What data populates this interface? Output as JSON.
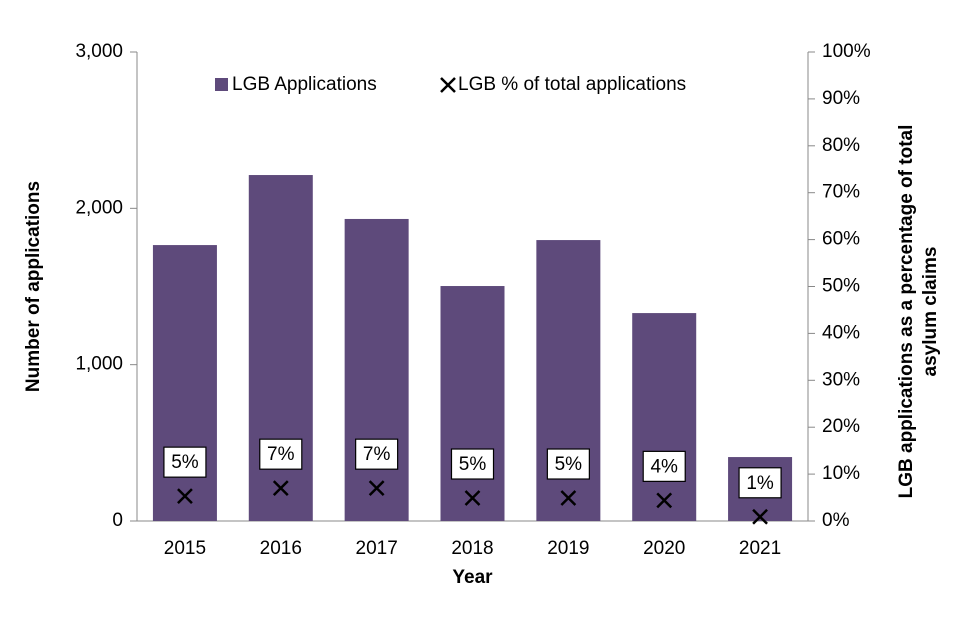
{
  "chart_data": {
    "type": "bar",
    "x_label": "Year",
    "y_label": "Number of applications",
    "y2_label": [
      "LGB applications as a percentage of total",
      "asylum claims"
    ],
    "categories": [
      "2015",
      "2016",
      "2017",
      "2018",
      "2019",
      "2020",
      "2021"
    ],
    "series": [
      {
        "name": "LGB Applications",
        "type": "bar",
        "color": "#5e4a7b",
        "values": [
          1765,
          2213,
          1932,
          1503,
          1797,
          1330,
          409
        ]
      },
      {
        "name": "LGB % of total applications",
        "type": "marker",
        "axis": "y2",
        "color": "#000000",
        "values": [
          5.3,
          7.0,
          7.0,
          4.9,
          4.9,
          4.4,
          0.9
        ],
        "value_labels": [
          "5%",
          "7%",
          "7%",
          "5%",
          "5%",
          "4%",
          "1%"
        ]
      }
    ],
    "ylim": [
      0,
      3000
    ],
    "yticks": [
      0,
      {
        "value": 1000,
        "label": "1,000"
      },
      {
        "value": 2000,
        "label": "2,000"
      },
      {
        "value": 3000,
        "label": "3,000"
      }
    ],
    "y2lim": [
      0,
      100
    ],
    "y2ticks": [
      {
        "value": 0,
        "label": "0%"
      },
      {
        "value": 10,
        "label": "10%"
      },
      {
        "value": 20,
        "label": "20%"
      },
      {
        "value": 30,
        "label": "30%"
      },
      {
        "value": 40,
        "label": "40%"
      },
      {
        "value": 50,
        "label": "50%"
      },
      {
        "value": 60,
        "label": "60%"
      },
      {
        "value": 70,
        "label": "70%"
      },
      {
        "value": 80,
        "label": "80%"
      },
      {
        "value": 90,
        "label": "90%"
      },
      {
        "value": 100,
        "label": "100%"
      }
    ],
    "legend": "top"
  }
}
